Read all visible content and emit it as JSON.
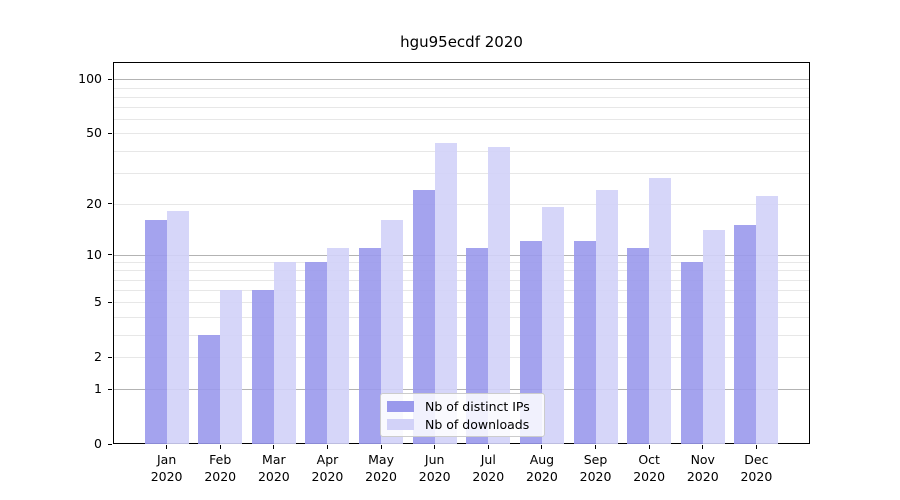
{
  "chart_data": {
    "type": "bar",
    "title": "hgu95ecdf 2020",
    "yscale": "log1p",
    "grid": "horizontal",
    "legend_position": "lower center",
    "categories": [
      "Jan 2020",
      "Feb 2020",
      "Mar 2020",
      "Apr 2020",
      "May 2020",
      "Jun 2020",
      "Jul 2020",
      "Aug 2020",
      "Sep 2020",
      "Oct 2020",
      "Nov 2020",
      "Dec 2020"
    ],
    "series": [
      {
        "name": "Nb of distinct IPs",
        "color": "#9a99ec",
        "values": [
          16,
          3,
          6,
          9,
          11,
          24,
          11,
          12,
          12,
          11,
          9,
          15
        ]
      },
      {
        "name": "Nb of downloads",
        "color": "#d2d2f8",
        "values": [
          18,
          6,
          9,
          11,
          16,
          44,
          42,
          19,
          24,
          28,
          14,
          22
        ]
      }
    ],
    "y_ticks": [
      0,
      1,
      2,
      5,
      10,
      20,
      50,
      100
    ],
    "y_minor_gridlines": [
      2,
      3,
      4,
      5,
      6,
      7,
      8,
      9,
      20,
      30,
      40,
      50,
      60,
      70,
      80,
      90
    ],
    "y_major_gridlines": [
      1,
      10,
      100
    ],
    "ylim": [
      0,
      125
    ]
  },
  "colors": {
    "grid_minor": "#e7e7e7",
    "grid_major": "#b3b3b3",
    "axis": "#000000",
    "legend_border": "#cccccc"
  }
}
